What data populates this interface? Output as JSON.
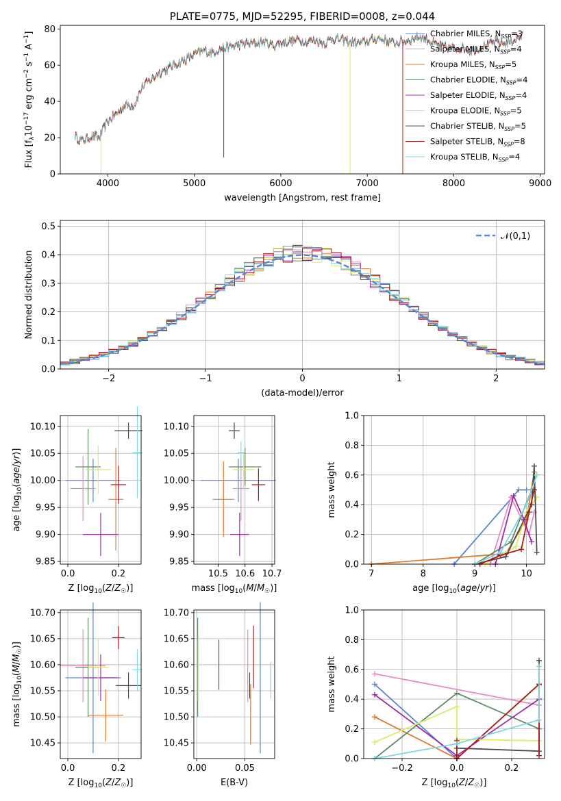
{
  "colors": {
    "chabrier_miles": "#5b84d6",
    "salpeter_miles": "#e68ac0",
    "kroupa_miles": "#e0782a",
    "chabrier_elodie": "#5d8c62",
    "salpeter_elodie": "#9c2aa8",
    "kroupa_elodie": "#d9ec6a",
    "chabrier_stelib": "#4a4a4a",
    "salpeter_stelib": "#b01818",
    "kroupa_stelib": "#7fd8e0"
  },
  "chart_data": [
    {
      "id": "spectrum",
      "type": "line",
      "title": "PLATE=0775, MJD=52295, FIBERID=0008, z=0.044",
      "xlabel": "wavelength [Angstrom, rest frame]",
      "ylabel": "Flux [f_λ10^-17 erg cm^-2 s^-1 A^-1]",
      "xlim": [
        3450,
        9050
      ],
      "ylim": [
        0,
        82
      ],
      "xticks": [
        "4000",
        "5000",
        "6000",
        "7000",
        "8000",
        "9000"
      ],
      "yticks": [
        "0",
        "20",
        "40",
        "60",
        "80"
      ],
      "grid": false,
      "legend_position": "top-right",
      "legend": [
        {
          "name": "Chabrier MILES, N",
          "sub": "SSP",
          "suffix": "=3",
          "color_key": "chabrier_miles"
        },
        {
          "name": "Salpeter MILES, N",
          "sub": "SSP",
          "suffix": "=4",
          "color_key": "salpeter_miles"
        },
        {
          "name": "Kroupa MILES, N",
          "sub": "SSP",
          "suffix": "=5",
          "color_key": "kroupa_miles"
        },
        {
          "name": "Chabrier ELODIE, N",
          "sub": "SSP",
          "suffix": "=4",
          "color_key": "chabrier_elodie"
        },
        {
          "name": "Salpeter ELODIE, N",
          "sub": "SSP",
          "suffix": "=4",
          "color_key": "salpeter_elodie"
        },
        {
          "name": "Kroupa ELODIE, N",
          "sub": "SSP",
          "suffix": "=5",
          "color_key": "kroupa_elodie"
        },
        {
          "name": "Chabrier STELIB, N",
          "sub": "SSP",
          "suffix": "=5",
          "color_key": "chabrier_stelib"
        },
        {
          "name": "Salpeter STELIB, N",
          "sub": "SSP",
          "suffix": "=8",
          "color_key": "salpeter_stelib"
        },
        {
          "name": "Kroupa STELIB, N",
          "sub": "SSP",
          "suffix": "=4",
          "color_key": "kroupa_stelib"
        }
      ],
      "continuum": [
        [
          3620,
          21
        ],
        [
          3700,
          18
        ],
        [
          3800,
          21
        ],
        [
          3900,
          20
        ],
        [
          4000,
          29
        ],
        [
          4100,
          33
        ],
        [
          4200,
          38
        ],
        [
          4300,
          38
        ],
        [
          4400,
          48
        ],
        [
          4500,
          52
        ],
        [
          4600,
          56
        ],
        [
          4700,
          58
        ],
        [
          4800,
          61
        ],
        [
          4900,
          63
        ],
        [
          5000,
          66
        ],
        [
          5100,
          68
        ],
        [
          5200,
          67
        ],
        [
          5300,
          69
        ],
        [
          5400,
          70
        ],
        [
          5500,
          71
        ],
        [
          5600,
          72
        ],
        [
          5700,
          72
        ],
        [
          5800,
          73
        ],
        [
          5900,
          71
        ],
        [
          6000,
          72
        ],
        [
          6100,
          73
        ],
        [
          6200,
          74
        ],
        [
          6300,
          73
        ],
        [
          6400,
          74
        ],
        [
          6500,
          72
        ],
        [
          6600,
          75
        ],
        [
          6700,
          74
        ],
        [
          6800,
          73
        ],
        [
          6900,
          72
        ],
        [
          7000,
          73
        ],
        [
          7100,
          75
        ],
        [
          7200,
          74
        ],
        [
          7300,
          72
        ],
        [
          7400,
          73
        ],
        [
          7500,
          74
        ],
        [
          7600,
          76
        ],
        [
          7700,
          74
        ],
        [
          7800,
          71
        ],
        [
          7900,
          70
        ],
        [
          8000,
          69
        ],
        [
          8100,
          70
        ],
        [
          8200,
          68
        ],
        [
          8300,
          70
        ],
        [
          8400,
          71
        ],
        [
          8500,
          73
        ],
        [
          8600,
          72
        ],
        [
          8700,
          74
        ],
        [
          8800,
          76
        ]
      ],
      "spikes": [
        {
          "x": 3920,
          "y": 0,
          "color_key": "kroupa_elodie"
        },
        {
          "x": 5340,
          "y": 9,
          "color_key": "chabrier_stelib"
        },
        {
          "x": 6800,
          "y": 0,
          "color_key": "kroupa_elodie"
        },
        {
          "x": 7410,
          "y": 0,
          "color_key": "salpeter_stelib"
        }
      ]
    },
    {
      "id": "residuals",
      "type": "histogram",
      "xlabel": "(data-model)/error",
      "ylabel": "Normed distribution",
      "xlim": [
        -2.5,
        2.5
      ],
      "ylim": [
        0,
        0.52
      ],
      "xticks": [
        "−2",
        "−1",
        "0",
        "1",
        "2"
      ],
      "yticks": [
        "0.0",
        "0.1",
        "0.2",
        "0.3",
        "0.4",
        "0.5"
      ],
      "grid": true,
      "legend_position": "top-right",
      "legend": [
        {
          "name": "𝒩(0,1)",
          "color_key": "chabrier_miles",
          "style": "dashed"
        }
      ],
      "bin_width": 0.1
    },
    {
      "id": "age_vs_z",
      "type": "errorbar",
      "xlabel": "Z [log10(Z/Z☉)]",
      "ylabel": "age [log10(age/yr)]",
      "xlim": [
        -0.03,
        0.29
      ],
      "ylim": [
        9.845,
        10.12
      ],
      "xticks": [
        "0.0",
        "0.2"
      ],
      "yticks": [
        "9.85",
        "9.90",
        "9.95",
        "10.00",
        "10.05",
        "10.10"
      ],
      "grid": true,
      "points": [
        {
          "x": 0.1,
          "y": 10.0,
          "ex": 0.11,
          "ey": 0.04,
          "color_key": "chabrier_miles"
        },
        {
          "x": 0.06,
          "y": 9.985,
          "ex": 0.05,
          "ey": 0.06,
          "color_key": "salpeter_miles"
        },
        {
          "x": 0.19,
          "y": 9.965,
          "ex": 0.03,
          "ey": 0.095,
          "color_key": "kroupa_miles"
        },
        {
          "x": 0.08,
          "y": 10.025,
          "ex": 0.05,
          "ey": 0.07,
          "color_key": "chabrier_elodie"
        },
        {
          "x": 0.13,
          "y": 9.9,
          "ex": 0.07,
          "ey": 0.04,
          "color_key": "salpeter_elodie"
        },
        {
          "x": 0.12,
          "y": 10.02,
          "ex": 0.05,
          "ey": 0.045,
          "color_key": "kroupa_elodie"
        },
        {
          "x": 0.24,
          "y": 10.092,
          "ex": 0.055,
          "ey": 0.015,
          "color_key": "chabrier_stelib"
        },
        {
          "x": 0.2,
          "y": 9.992,
          "ex": 0.03,
          "ey": 0.035,
          "color_key": "salpeter_stelib"
        },
        {
          "x": 0.275,
          "y": 10.052,
          "ex": 0.02,
          "ey": 0.085,
          "color_key": "kroupa_stelib"
        }
      ]
    },
    {
      "id": "age_vs_mass",
      "type": "errorbar",
      "xlabel": "mass [log10(M/M☉)]",
      "ylabel": "",
      "xlim": [
        10.41,
        10.71
      ],
      "ylim": [
        9.845,
        10.12
      ],
      "xticks": [
        "10.5",
        "10.6",
        "10.7"
      ],
      "yticks": [
        "9.85",
        "9.90",
        "9.95",
        "10.00",
        "10.05",
        "10.10"
      ],
      "grid": true,
      "points": [
        {
          "x": 10.575,
          "y": 10.0,
          "ex": 0.14,
          "ey": 0.04,
          "color_key": "chabrier_miles"
        },
        {
          "x": 10.585,
          "y": 9.985,
          "ex": 0.03,
          "ey": 0.06,
          "color_key": "salpeter_miles"
        },
        {
          "x": 10.52,
          "y": 9.965,
          "ex": 0.04,
          "ey": 0.07,
          "color_key": "kroupa_miles"
        },
        {
          "x": 10.6,
          "y": 10.025,
          "ex": 0.06,
          "ey": 0.035,
          "color_key": "chabrier_elodie"
        },
        {
          "x": 10.58,
          "y": 9.9,
          "ex": 0.035,
          "ey": 0.04,
          "color_key": "salpeter_elodie"
        },
        {
          "x": 10.595,
          "y": 10.02,
          "ex": 0.04,
          "ey": 0.035,
          "color_key": "kroupa_elodie"
        },
        {
          "x": 10.56,
          "y": 10.092,
          "ex": 0.02,
          "ey": 0.015,
          "color_key": "chabrier_stelib"
        },
        {
          "x": 10.65,
          "y": 9.992,
          "ex": 0.025,
          "ey": 0.03,
          "color_key": "salpeter_stelib"
        },
        {
          "x": 10.585,
          "y": 10.052,
          "ex": 0.012,
          "ey": 0.02,
          "color_key": "kroupa_stelib"
        }
      ]
    },
    {
      "id": "massweight_vs_age",
      "type": "line",
      "xlabel": "age [log10(age/yr)]",
      "ylabel": "mass weight",
      "xlim": [
        6.85,
        10.35
      ],
      "ylim": [
        0,
        1.0
      ],
      "xticks": [
        "7",
        "8",
        "9",
        "10"
      ],
      "yticks": [
        "0.0",
        "0.2",
        "0.4",
        "0.6",
        "0.8",
        "1.0"
      ],
      "grid": true,
      "series": [
        {
          "color_key": "chabrier_miles",
          "x": [
            8.6,
            9.85,
            10.0
          ],
          "y": [
            0.0,
            0.5,
            0.5
          ]
        },
        {
          "color_key": "salpeter_miles",
          "x": [
            9.3,
            9.7,
            10.05,
            10.15
          ],
          "y": [
            0.0,
            0.45,
            0.2,
            0.35
          ]
        },
        {
          "color_key": "kroupa_miles",
          "x": [
            7.0,
            9.6,
            10.0,
            10.15
          ],
          "y": [
            0.0,
            0.07,
            0.3,
            0.62
          ]
        },
        {
          "color_key": "chabrier_elodie",
          "x": [
            9.0,
            9.7,
            10.1,
            10.2
          ],
          "y": [
            0.0,
            0.15,
            0.5,
            0.6
          ]
        },
        {
          "color_key": "salpeter_elodie",
          "x": [
            9.4,
            9.75,
            9.95,
            10.1
          ],
          "y": [
            0.0,
            0.46,
            0.3,
            0.15
          ]
        },
        {
          "color_key": "kroupa_elodie",
          "x": [
            9.2,
            9.8,
            10.0,
            10.2
          ],
          "y": [
            0.0,
            0.12,
            0.35,
            0.45
          ]
        },
        {
          "color_key": "chabrier_stelib",
          "x": [
            9.0,
            9.6,
            10.1,
            10.15,
            10.2
          ],
          "y": [
            0.0,
            0.05,
            0.4,
            0.66,
            0.08
          ]
        },
        {
          "color_key": "salpeter_stelib",
          "x": [
            9.1,
            9.5,
            9.9,
            10.05,
            10.15
          ],
          "y": [
            0.0,
            0.06,
            0.1,
            0.35,
            0.5
          ]
        },
        {
          "color_key": "kroupa_stelib",
          "x": [
            9.0,
            9.5,
            10.0,
            10.2
          ],
          "y": [
            0.0,
            0.08,
            0.4,
            0.6
          ]
        }
      ]
    },
    {
      "id": "mass_vs_z",
      "type": "errorbar",
      "xlabel": "Z [log10(Z/Z☉)]",
      "ylabel": "mass [log10(M/M☉)]",
      "xlim": [
        -0.03,
        0.29
      ],
      "ylim": [
        10.42,
        10.705
      ],
      "xticks": [
        "0.0",
        "0.2"
      ],
      "yticks": [
        "10.45",
        "10.50",
        "10.55",
        "10.60",
        "10.65",
        "10.70"
      ],
      "grid": true,
      "points": [
        {
          "x": 0.1,
          "y": 10.575,
          "ex": 0.11,
          "ey": 0.145,
          "color_key": "chabrier_miles"
        },
        {
          "x": 0.06,
          "y": 10.598,
          "ex": 0.09,
          "ey": 0.07,
          "color_key": "salpeter_miles"
        },
        {
          "x": 0.15,
          "y": 10.503,
          "ex": 0.07,
          "ey": 0.05,
          "color_key": "kroupa_miles"
        },
        {
          "x": 0.08,
          "y": 10.595,
          "ex": 0.05,
          "ey": 0.095,
          "color_key": "chabrier_elodie"
        },
        {
          "x": 0.13,
          "y": 10.575,
          "ex": 0.07,
          "ey": 0.045,
          "color_key": "salpeter_elodie"
        },
        {
          "x": 0.12,
          "y": 10.595,
          "ex": 0.04,
          "ey": 0.055,
          "color_key": "kroupa_elodie"
        },
        {
          "x": 0.24,
          "y": 10.56,
          "ex": 0.05,
          "ey": 0.025,
          "color_key": "chabrier_stelib"
        },
        {
          "x": 0.2,
          "y": 10.652,
          "ex": 0.025,
          "ey": 0.022,
          "color_key": "salpeter_stelib"
        },
        {
          "x": 0.275,
          "y": 10.59,
          "ex": 0.02,
          "ey": 0.04,
          "color_key": "kroupa_stelib"
        }
      ]
    },
    {
      "id": "mass_vs_ebv",
      "type": "errorbar",
      "xlabel": "E(B-V)",
      "ylabel": "",
      "xlim": [
        -0.003,
        0.081
      ],
      "ylim": [
        10.42,
        10.705
      ],
      "xticks": [
        "0.00",
        "0.05"
      ],
      "yticks": [
        "10.45",
        "10.50",
        "10.55",
        "10.60",
        "10.65",
        "10.70"
      ],
      "grid": true,
      "points": [
        {
          "x": 0.066,
          "y": 10.575,
          "ex": 0,
          "ey": 0.145,
          "color_key": "chabrier_miles"
        },
        {
          "x": 0.053,
          "y": 10.598,
          "ex": 0,
          "ey": 0.07,
          "color_key": "salpeter_miles"
        },
        {
          "x": 0.056,
          "y": 10.505,
          "ex": 0,
          "ey": 0.058,
          "color_key": "kroupa_miles"
        },
        {
          "x": 0.001,
          "y": 10.595,
          "ex": 0,
          "ey": 0.095,
          "color_key": "chabrier_elodie"
        },
        {
          "x": 0.023,
          "y": 10.6,
          "ex": 0,
          "ey": 0.048,
          "color_key": "salpeter_elodie"
        },
        {
          "x": 0.0015,
          "y": 10.59,
          "ex": 0,
          "ey": 0.06,
          "color_key": "kroupa_elodie"
        },
        {
          "x": 0.055,
          "y": 10.56,
          "ex": 0,
          "ey": 0.025,
          "color_key": "chabrier_stelib"
        },
        {
          "x": 0.059,
          "y": 10.615,
          "ex": 0,
          "ey": 0.06,
          "color_key": "salpeter_stelib"
        },
        {
          "x": 0.077,
          "y": 10.57,
          "ex": 0,
          "ey": 0.035,
          "color_key": "kroupa_stelib"
        }
      ]
    },
    {
      "id": "massweight_vs_z",
      "type": "line",
      "xlabel": "Z [log10(Z/Z☉)]",
      "ylabel": "mass weight",
      "xlim": [
        -0.34,
        0.32
      ],
      "ylim": [
        0,
        1.0
      ],
      "xticks": [
        "−0.2",
        "0.0",
        "0.2"
      ],
      "yticks": [
        "0.0",
        "0.2",
        "0.4",
        "0.6",
        "0.8",
        "1.0"
      ],
      "grid": true,
      "series": [
        {
          "color_key": "chabrier_miles",
          "x": [
            -0.3,
            0.0,
            0.3
          ],
          "y": [
            0.5,
            0.0,
            0.5
          ]
        },
        {
          "color_key": "salpeter_miles",
          "x": [
            -0.3,
            0.3
          ],
          "y": [
            0.57,
            0.36
          ]
        },
        {
          "color_key": "kroupa_miles",
          "x": [
            -0.3,
            0.0,
            0.3
          ],
          "y": [
            0.28,
            0.0,
            0.5
          ]
        },
        {
          "color_key": "chabrier_elodie",
          "x": [
            -0.3,
            0.0,
            0.3
          ],
          "y": [
            0.0,
            0.44,
            0.2
          ]
        },
        {
          "color_key": "salpeter_elodie",
          "x": [
            -0.3,
            0.0,
            0.3
          ],
          "y": [
            0.43,
            0.02,
            0.4
          ]
        },
        {
          "color_key": "kroupa_elodie",
          "x": [
            -0.3,
            0.0,
            0.0,
            0.3
          ],
          "y": [
            0.11,
            0.35,
            0.13,
            0.12
          ]
        },
        {
          "color_key": "chabrier_stelib",
          "x": [
            0.0,
            0.0,
            0.3,
            0.3
          ],
          "y": [
            0.1,
            0.07,
            0.05,
            0.66
          ]
        },
        {
          "color_key": "salpeter_stelib",
          "x": [
            0.0,
            0.0,
            0.3,
            0.3
          ],
          "y": [
            0.12,
            0.0,
            0.5,
            0.02
          ]
        },
        {
          "color_key": "kroupa_stelib",
          "x": [
            -0.3,
            0.0,
            0.3,
            0.3
          ],
          "y": [
            0.0,
            0.1,
            0.26,
            0.62
          ]
        }
      ]
    }
  ]
}
